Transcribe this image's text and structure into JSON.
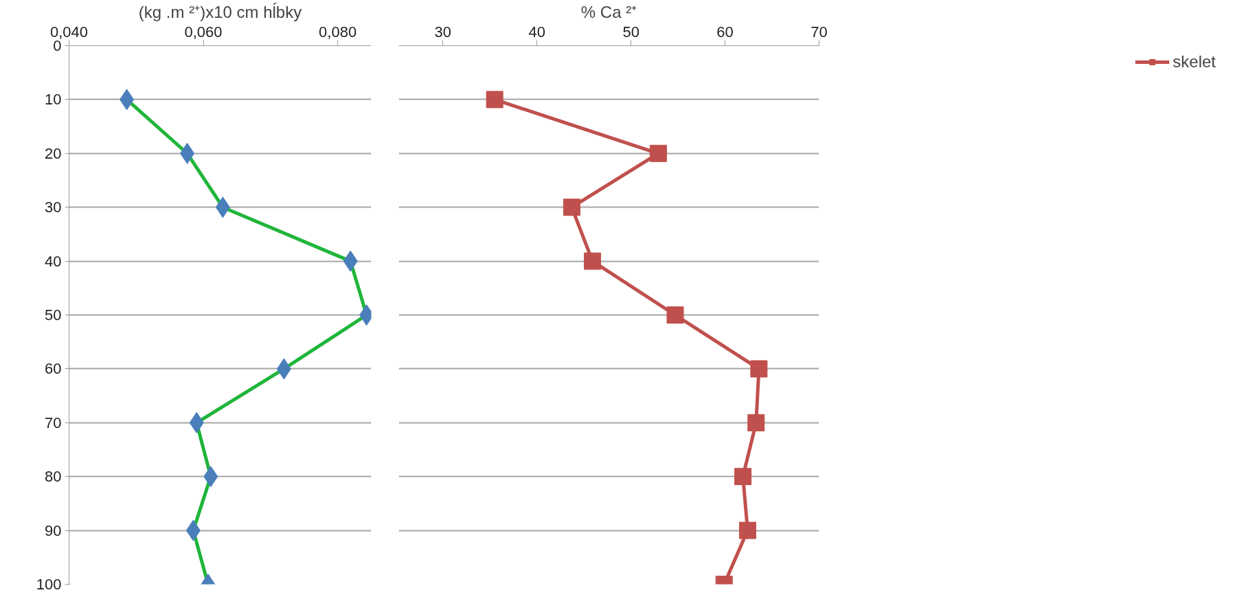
{
  "chart_data": [
    {
      "type": "line",
      "orientation": "horizontal",
      "xlabel": "(kg .m ²⁺)x10 cm hĺbky",
      "x": [
        10,
        20,
        30,
        40,
        50,
        60,
        70,
        80,
        90,
        100
      ],
      "series": [
        {
          "color": "#1fb53a",
          "colors": [
            "#4a7ebb",
            "#4a7ebb",
            "#4a7ebb",
            "#4a7ebb",
            "#4a7ebb",
            "#4a7ebb",
            "#4a7ebb",
            "#4a7ebb",
            "#4a7ebb",
            "#4a7ebb"
          ],
          "marker": "diamond",
          "values": [
            0.0486,
            0.0576,
            0.0629,
            0.0819,
            0.0843,
            0.072,
            0.059,
            0.0611,
            0.0585,
            0.0607
          ]
        }
      ],
      "xlim": [
        0.04,
        0.085
      ],
      "xticks": [
        {
          "value": 0.04,
          "label": "0,040"
        },
        {
          "value": 0.06,
          "label": "0,060"
        },
        {
          "value": 0.08,
          "label": "0,080"
        }
      ],
      "ylim": [
        100,
        0
      ],
      "yticks": [
        0,
        10,
        20,
        30,
        40,
        50,
        60,
        70,
        80,
        90,
        100
      ],
      "grid": "y",
      "legend": false
    },
    {
      "type": "line",
      "orientation": "horizontal",
      "xlabel": "% Ca ²⁺",
      "x": [
        10,
        20,
        30,
        40,
        50,
        60,
        70,
        80,
        90,
        100
      ],
      "series": [
        {
          "name": "skelet",
          "color": "#c0504d",
          "marker": "square",
          "values": [
            35.5,
            52.9,
            43.7,
            45.9,
            54.7,
            63.6,
            63.3,
            61.9,
            62.4,
            59.9
          ]
        }
      ],
      "xlim": [
        25.3,
        70
      ],
      "xticks": [
        30,
        40,
        50,
        60,
        70
      ],
      "ylim": [
        100,
        0
      ],
      "yticks": [
        0,
        10,
        20,
        30,
        40,
        50,
        60,
        70,
        80,
        90,
        100
      ],
      "grid": "y",
      "legend": "right",
      "tick_labels": "x"
    }
  ]
}
